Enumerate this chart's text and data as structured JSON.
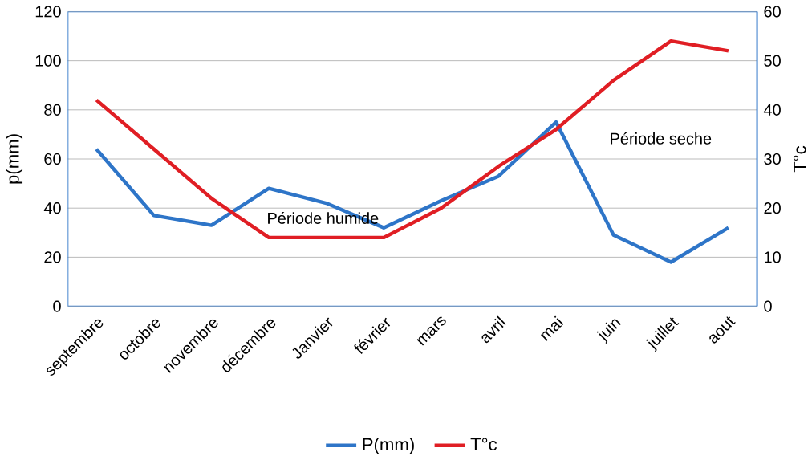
{
  "chart_data": {
    "type": "line",
    "categories": [
      "septembre",
      "octobre",
      "novembre",
      "décembre",
      "Janvier",
      "février",
      "mars",
      "avril",
      "mai",
      "juin",
      "juillet",
      "aout"
    ],
    "series": [
      {
        "name": "P(mm)",
        "color": "#2e75c8",
        "values": [
          64,
          37,
          33,
          48,
          42,
          32,
          43,
          53,
          75,
          29,
          18,
          32
        ]
      },
      {
        "name": "T°c",
        "color": "#e01e24",
        "axis": "y2",
        "values": [
          42,
          32,
          22,
          14,
          14,
          14,
          20,
          28.5,
          36,
          46,
          54,
          52
        ]
      }
    ],
    "ylabel": "p(mm)",
    "y2label": "T°c",
    "ylim": [
      0,
      120
    ],
    "yticks": [
      0,
      20,
      40,
      60,
      80,
      100,
      120
    ],
    "y2lim": [
      0,
      60
    ],
    "y2ticks": [
      0,
      10,
      20,
      30,
      40,
      50,
      60
    ],
    "annotations": [
      "Période humide",
      "Période seche"
    ],
    "grid": "y",
    "legend": "bottom",
    "marker": "none",
    "line_style": "solid"
  }
}
